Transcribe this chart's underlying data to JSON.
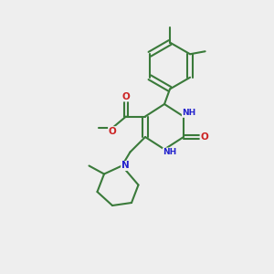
{
  "bg_color": "#eeeeee",
  "bond_color": "#3a7a3a",
  "bond_width": 1.5,
  "atom_colors": {
    "N": "#2222cc",
    "O": "#cc2222",
    "C": "#3a7a3a",
    "H": "#888888"
  },
  "font_size": 7.5,
  "font_size_small": 6.5
}
